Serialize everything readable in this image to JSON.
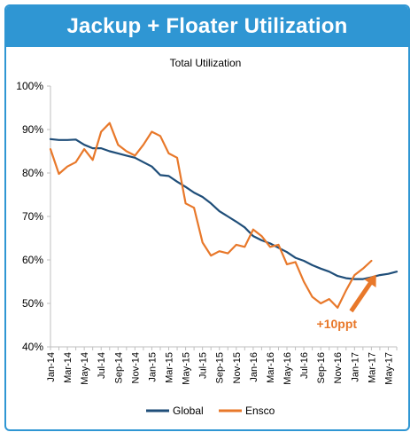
{
  "header": {
    "title": "Jackup + Floater Utilization"
  },
  "colors": {
    "header_bg": "#2f96d3",
    "global": "#1f4e79",
    "ensco": "#e8782a",
    "annotation": "#e8782a"
  },
  "chart_data": {
    "type": "line",
    "title": "Total Utilization",
    "xlabel": "",
    "ylabel": "",
    "ylim": [
      40,
      100
    ],
    "yticks": [
      "40%",
      "50%",
      "60%",
      "70%",
      "80%",
      "90%",
      "100%"
    ],
    "ytick_values": [
      40,
      50,
      60,
      70,
      80,
      90,
      100
    ],
    "x_range": [
      0,
      42
    ],
    "xticks": [
      "Jan-14",
      "Mar-14",
      "May-14",
      "Jul-14",
      "Sep-14",
      "Nov-14",
      "Jan-15",
      "Mar-15",
      "May-15",
      "Jul-15",
      "Sep-15",
      "Nov-15",
      "Jan-16",
      "Mar-16",
      "May-16",
      "Jul-16",
      "Sep-16",
      "Nov-16",
      "Jan-17",
      "Mar-17",
      "May-17"
    ],
    "xtick_positions": [
      0,
      2,
      4,
      6,
      8,
      10,
      12,
      14,
      16,
      18,
      20,
      22,
      24,
      26,
      28,
      30,
      32,
      34,
      36,
      38,
      40
    ],
    "grid": false,
    "legend": "bottom",
    "series": [
      {
        "name": "Global",
        "color": "#1f4e79",
        "x": [
          "Jan-14",
          "Feb-14",
          "Mar-14",
          "Apr-14",
          "May-14",
          "Jun-14",
          "Jul-14",
          "Aug-14",
          "Sep-14",
          "Oct-14",
          "Nov-14",
          "Dec-14",
          "Jan-15",
          "Feb-15",
          "Mar-15",
          "Apr-15",
          "May-15",
          "Jun-15",
          "Jul-15",
          "Aug-15",
          "Sep-15",
          "Oct-15",
          "Nov-15",
          "Dec-15",
          "Jan-16",
          "Feb-16",
          "Mar-16",
          "Apr-16",
          "May-16",
          "Jun-16",
          "Jul-16",
          "Aug-16",
          "Sep-16",
          "Oct-16",
          "Nov-16",
          "Dec-16",
          "Jan-17",
          "Feb-17",
          "Mar-17",
          "Apr-17",
          "May-17",
          "Jun-17"
        ],
        "values": [
          87.8,
          87.6,
          87.6,
          87.7,
          86.5,
          85.7,
          85.7,
          85.0,
          84.5,
          84.0,
          83.5,
          82.5,
          81.5,
          79.5,
          79.3,
          78.0,
          76.8,
          75.5,
          74.5,
          73.0,
          71.2,
          70.0,
          68.8,
          67.5,
          65.5,
          64.5,
          63.8,
          62.8,
          61.8,
          60.5,
          59.8,
          58.8,
          58.0,
          57.3,
          56.3,
          55.8,
          55.6,
          55.6,
          56.0,
          56.5,
          56.8,
          57.3
        ]
      },
      {
        "name": "Ensco",
        "color": "#e8782a",
        "x": [
          "Jan-14",
          "Feb-14",
          "Mar-14",
          "Apr-14",
          "May-14",
          "Jun-14",
          "Jul-14",
          "Aug-14",
          "Sep-14",
          "Oct-14",
          "Nov-14",
          "Dec-14",
          "Jan-15",
          "Feb-15",
          "Mar-15",
          "Apr-15",
          "May-15",
          "Jun-15",
          "Jul-15",
          "Aug-15",
          "Sep-15",
          "Oct-15",
          "Nov-15",
          "Dec-15",
          "Jan-16",
          "Feb-16",
          "Mar-16",
          "Apr-16",
          "May-16",
          "Jun-16",
          "Jul-16",
          "Aug-16",
          "Sep-16",
          "Oct-16",
          "Nov-16",
          "Dec-16",
          "Jan-17",
          "Feb-17",
          "Mar-17"
        ],
        "values": [
          85.5,
          79.8,
          81.5,
          82.5,
          85.5,
          83.0,
          89.5,
          91.5,
          86.5,
          85.0,
          84.0,
          86.5,
          89.5,
          88.5,
          84.5,
          83.5,
          73.0,
          72.0,
          64.0,
          61.0,
          62.0,
          61.5,
          63.5,
          63.0,
          67.0,
          65.5,
          63.0,
          63.5,
          59.0,
          59.5,
          55.0,
          51.5,
          50.0,
          51.0,
          49.0,
          53.0,
          56.5,
          58.0,
          59.8
        ]
      }
    ],
    "annotations": [
      {
        "text": "+10ppt",
        "arrow": true,
        "color": "#e8782a"
      }
    ]
  }
}
